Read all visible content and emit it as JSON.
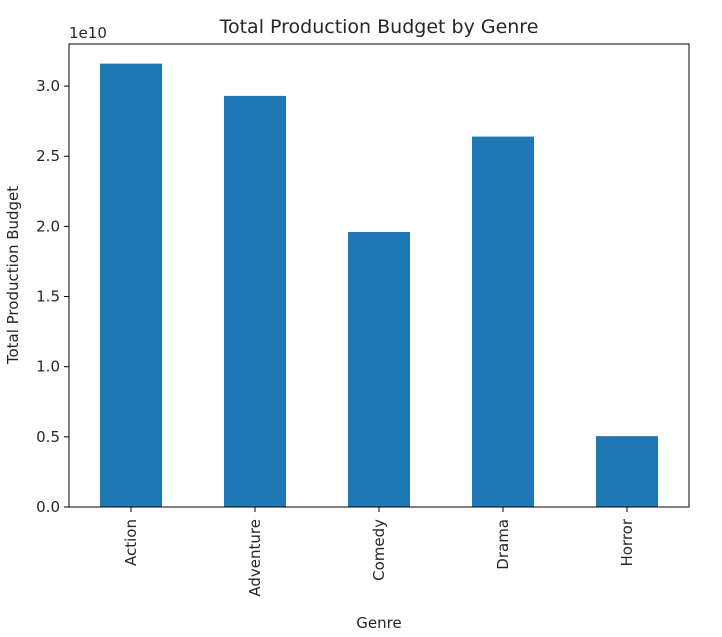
{
  "chart_data": {
    "type": "bar",
    "title": "Total Production Budget by Genre",
    "xlabel": "Genre",
    "ylabel": "Total Production Budget",
    "offset_label": "1e10",
    "categories": [
      "Action",
      "Adventure",
      "Comedy",
      "Drama",
      "Horror"
    ],
    "series": [
      {
        "values": [
          31600000000,
          29300000000,
          19600000000,
          26400000000,
          5050000000
        ],
        "color": "#1f77b4"
      }
    ],
    "ylim": [
      0,
      33000000000
    ],
    "yticks": [
      0,
      5000000000,
      10000000000,
      15000000000,
      20000000000,
      25000000000,
      30000000000
    ],
    "ytick_labels": [
      "0.0",
      "0.5",
      "1.0",
      "1.5",
      "2.0",
      "2.5",
      "3.0"
    ],
    "grid": false,
    "legend": false
  }
}
